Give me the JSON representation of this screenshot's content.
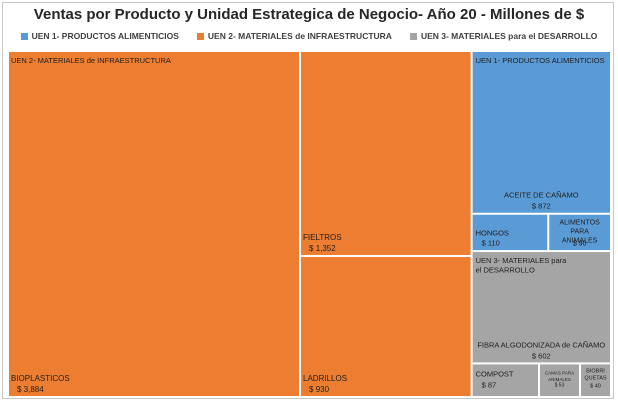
{
  "chart_data": {
    "type": "treemap",
    "title": "Ventas por Producto y Unidad Estrategica de Negocio-  Año 20 - Millones de $",
    "legend_position": "top",
    "groups": [
      {
        "name": "UEN 2- MATERIALES de INFRAESTRUCTURA",
        "color": "#ED7D31",
        "items": [
          {
            "name": "BIOPLASTICOS",
            "value": 3884,
            "label": "$ 3,884"
          },
          {
            "name": "FIELTROS",
            "value": 1352,
            "label": "$ 1,352"
          },
          {
            "name": "LADRILLOS",
            "value": 930,
            "label": "$ 930"
          }
        ]
      },
      {
        "name": "UEN 1- PRODUCTOS ALIMENTICIOS",
        "color": "#5B9BD5",
        "items": [
          {
            "name": "ACEITE DE CAÑAMO",
            "value": 872,
            "label": "$ 872"
          },
          {
            "name": "HONGOS",
            "value": 110,
            "label": "$ 110"
          },
          {
            "name": "ALIMENTOS PARA ANIMALES",
            "value": 90,
            "label": "$ 90"
          }
        ]
      },
      {
        "name": "UEN 3- MATERIALES para el DESARROLLO",
        "color": "#A5A5A5",
        "items": [
          {
            "name": "FIBRA ALGODONIZADA de CAÑAMO",
            "value": 602,
            "label": "$ 602"
          },
          {
            "name": "COMPOST",
            "value": 87,
            "label": "$ 87"
          },
          {
            "name": "CAMAS PARA ANIMALES",
            "value": 53,
            "label": "$ 53"
          },
          {
            "name": "BIOBRIQUETAS",
            "value": 40,
            "label": "$ 40"
          }
        ]
      }
    ]
  },
  "legend": [
    {
      "label": "UEN 1- PRODUCTOS ALIMENTICIOS",
      "color": "#5B9BD5"
    },
    {
      "label": "UEN 2- MATERIALES de INFRAESTRUCTURA",
      "color": "#ED7D31"
    },
    {
      "label": "UEN 3- MATERIALES para el DESARROLLO",
      "color": "#A5A5A5"
    }
  ]
}
